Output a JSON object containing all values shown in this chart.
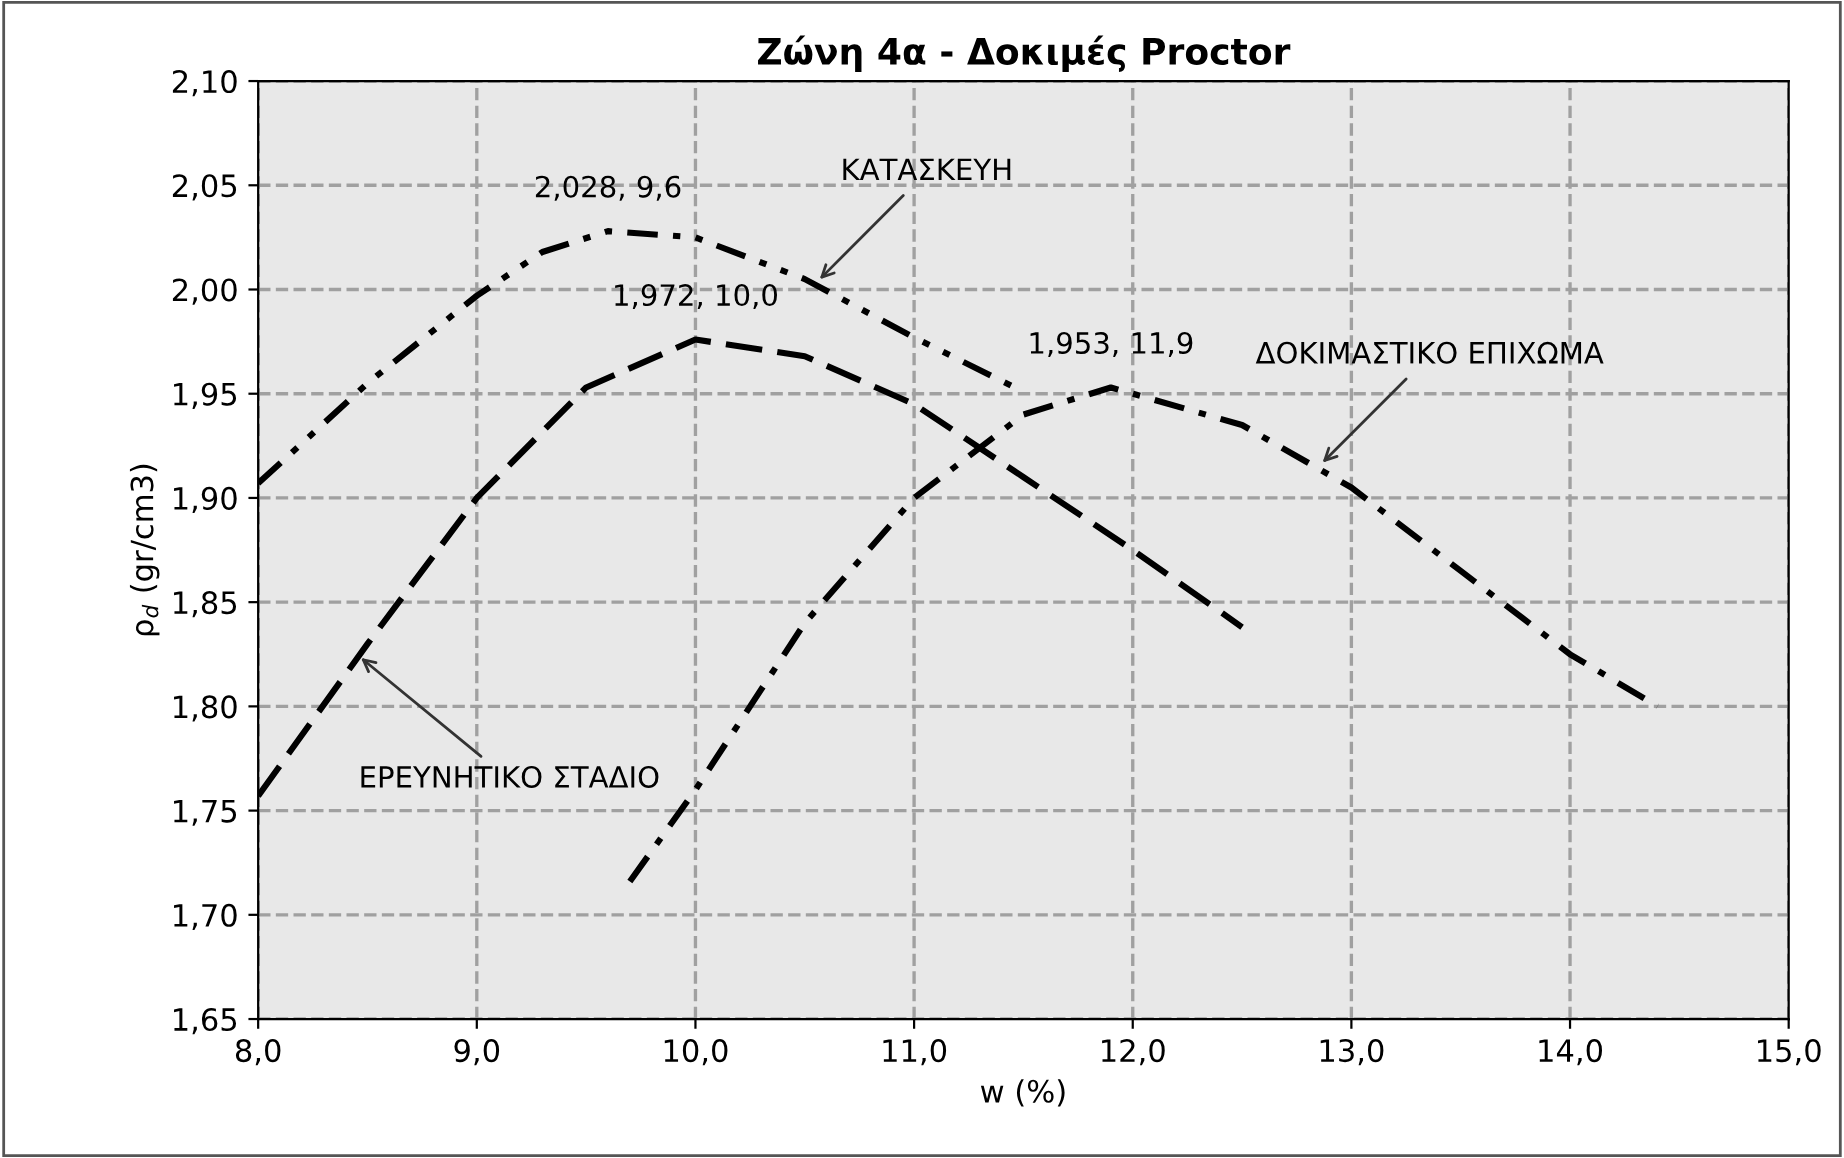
{
  "chart_data": {
    "type": "line",
    "title": "Ζώνη 4α - Δοκιμές Proctor",
    "xlabel": "w (%)",
    "ylabel": "ρ$_{d}$ (gr/cm3)",
    "xlim": [
      8.0,
      15.0
    ],
    "xticks": [
      {
        "value": 8,
        "label": "8,0"
      },
      {
        "value": 9,
        "label": "9,0"
      },
      {
        "value": 10,
        "label": "10,0"
      },
      {
        "value": 11,
        "label": "11,0"
      },
      {
        "value": 12,
        "label": "12,0"
      },
      {
        "value": 13,
        "label": "13,0"
      },
      {
        "value": 14,
        "label": "14,0"
      },
      {
        "value": 15,
        "label": "15,0"
      }
    ],
    "ylim": [
      1.65,
      2.1
    ],
    "yticks": [
      {
        "value": 1.65,
        "label": "1,65"
      },
      {
        "value": 1.7,
        "label": "1,70"
      },
      {
        "value": 1.75,
        "label": "1,75"
      },
      {
        "value": 1.8,
        "label": "1,80"
      },
      {
        "value": 1.85,
        "label": "1,85"
      },
      {
        "value": 1.9,
        "label": "1,90"
      },
      {
        "value": 1.95,
        "label": "1,95"
      },
      {
        "value": 2.0,
        "label": "2,00"
      },
      {
        "value": 2.05,
        "label": "2,05"
      },
      {
        "value": 2.1,
        "label": "2,10"
      }
    ],
    "grid": true,
    "legend": false,
    "marker": "none",
    "series": [
      {
        "color": "#000000",
        "line_style": "dashdotdot",
        "x": [
          8.0,
          8.5,
          9.0,
          9.3,
          9.6,
          10.0,
          10.5,
          11.0,
          11.48
        ],
        "values": [
          1.907,
          1.955,
          1.997,
          2.018,
          2.028,
          2.025,
          2.005,
          1.977,
          1.952
        ]
      },
      {
        "color": "#000000",
        "line_style": "dashed",
        "x": [
          8.0,
          8.5,
          9.0,
          9.5,
          10.0,
          10.5,
          11.0,
          11.5,
          12.0,
          12.5
        ],
        "values": [
          1.757,
          1.83,
          1.9,
          1.953,
          1.976,
          1.968,
          1.945,
          1.91,
          1.875,
          1.838
        ]
      },
      {
        "color": "#000000",
        "line_style": "dashdot",
        "x": [
          9.7,
          10.0,
          10.5,
          11.0,
          11.5,
          11.9,
          12.5,
          13.0,
          13.5,
          14.0,
          14.4
        ],
        "values": [
          1.716,
          1.76,
          1.84,
          1.9,
          1.94,
          1.953,
          1.935,
          1.905,
          1.865,
          1.825,
          1.8
        ]
      }
    ],
    "annotations": [
      {
        "text": "2,028, 9,6",
        "x": 9.6,
        "y": 2.028
      },
      {
        "text": "1,972, 10,0",
        "x": 10.0,
        "y": 1.976
      },
      {
        "text": "1,953, 11,9",
        "x": 11.9,
        "y": 1.953
      },
      {
        "text": "ΚΑΤΑΣΚΕΥΗ",
        "x": 10.55,
        "y": 2.003
      },
      {
        "text": "ΔΟΚΙΜΑΣΤΙΚΟ ΕΠΙΧΩΜΑ",
        "x": 12.85,
        "y": 1.915
      },
      {
        "text": "ΕΡΕΥΝΗΤΙΚΟ ΣΤΑΔΙΟ",
        "x": 8.45,
        "y": 1.825
      }
    ]
  }
}
